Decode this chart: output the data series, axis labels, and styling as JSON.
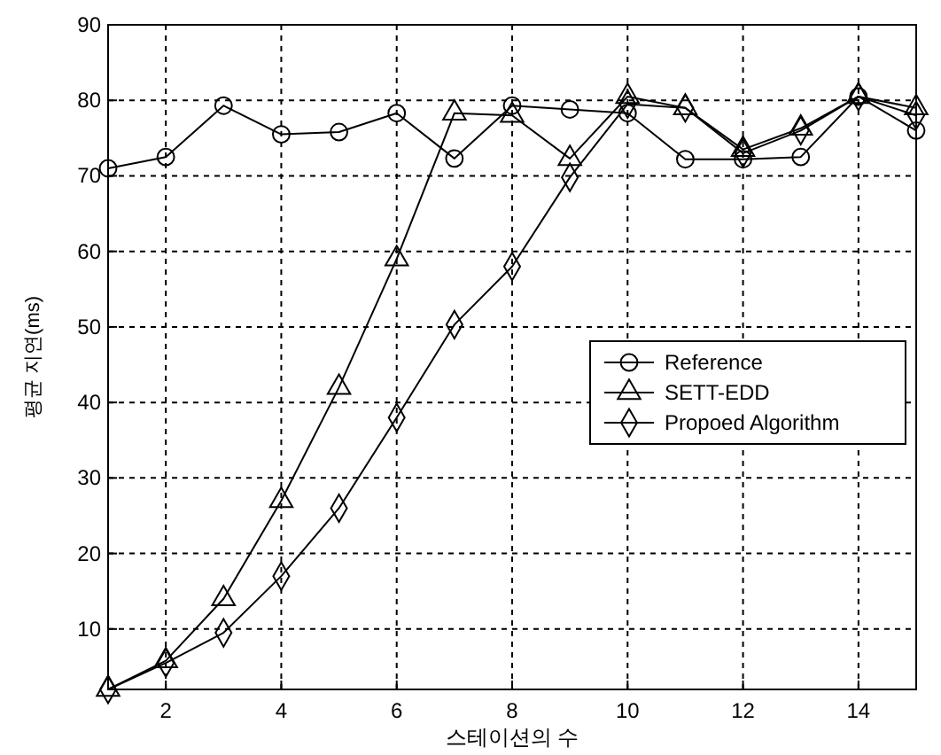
{
  "chart_data": {
    "type": "line",
    "xlabel": "스테이션의 수",
    "ylabel": "평균 지연(ms)",
    "x": [
      1,
      2,
      3,
      4,
      5,
      6,
      7,
      8,
      9,
      10,
      11,
      12,
      13,
      14,
      15
    ],
    "series": [
      {
        "name": "Reference",
        "color": "#000000",
        "marker": "circle",
        "values": [
          71,
          72.5,
          79.3,
          75.5,
          75.8,
          78.3,
          72.3,
          79.3,
          78.8,
          78.3,
          72.2,
          72.2,
          72.5,
          80.5,
          76
        ]
      },
      {
        "name": "SETT-EDD",
        "color": "#000000",
        "marker": "triangle",
        "values": [
          2,
          5.8,
          14,
          27,
          42,
          59,
          78.3,
          78,
          72.3,
          80.5,
          79,
          73.5,
          76.3,
          80.5,
          79
        ]
      },
      {
        "name": "Propoed Algorithm",
        "color": "#000000",
        "marker": "diamond",
        "values": [
          2,
          5.5,
          9.5,
          17,
          26,
          38,
          50.3,
          58,
          69.8,
          79.5,
          79,
          73,
          76,
          80.5,
          78
        ]
      }
    ],
    "xlim": [
      1,
      15
    ],
    "ylim": [
      2,
      90
    ],
    "xticks": [
      2,
      4,
      6,
      8,
      10,
      12,
      14
    ],
    "yticks": [
      10,
      20,
      30,
      40,
      50,
      60,
      70,
      80,
      90
    ],
    "grid": true,
    "legend": "right",
    "line_style": "solid"
  }
}
